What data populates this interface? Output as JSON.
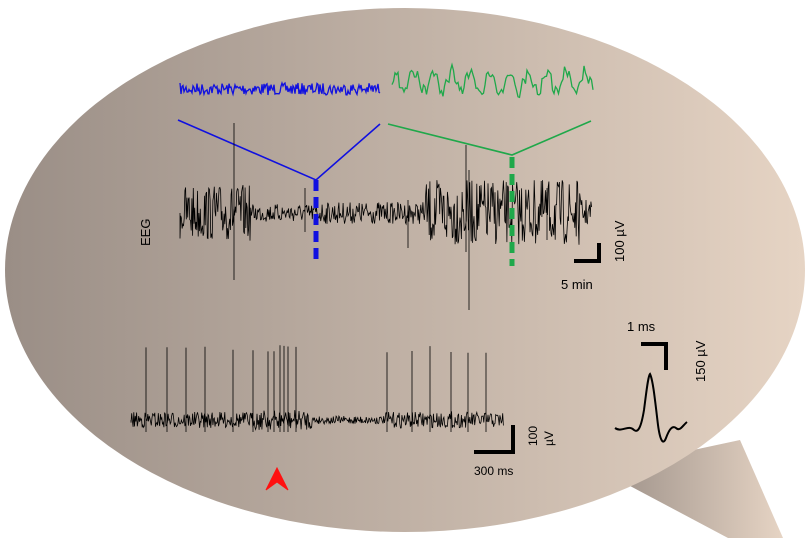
{
  "labels": {
    "eeg": "EEG",
    "eeg_scale_time": "5 min",
    "eeg_scale_amp": "100 µV",
    "unit_scale_time": "300 ms",
    "unit_scale_amp_value": "100",
    "unit_scale_amp_unit": "µV",
    "waveform_scale_time": "1 ms",
    "waveform_scale_amp": "150 µV"
  },
  "colors": {
    "low_state_trace": "#1010e0",
    "high_state_trace": "#1fa84a",
    "marker_arrow": "#ff1010",
    "trace": "#000000",
    "bubble_left": "#9a8e86",
    "bubble_right": "#e6d4c4"
  }
}
